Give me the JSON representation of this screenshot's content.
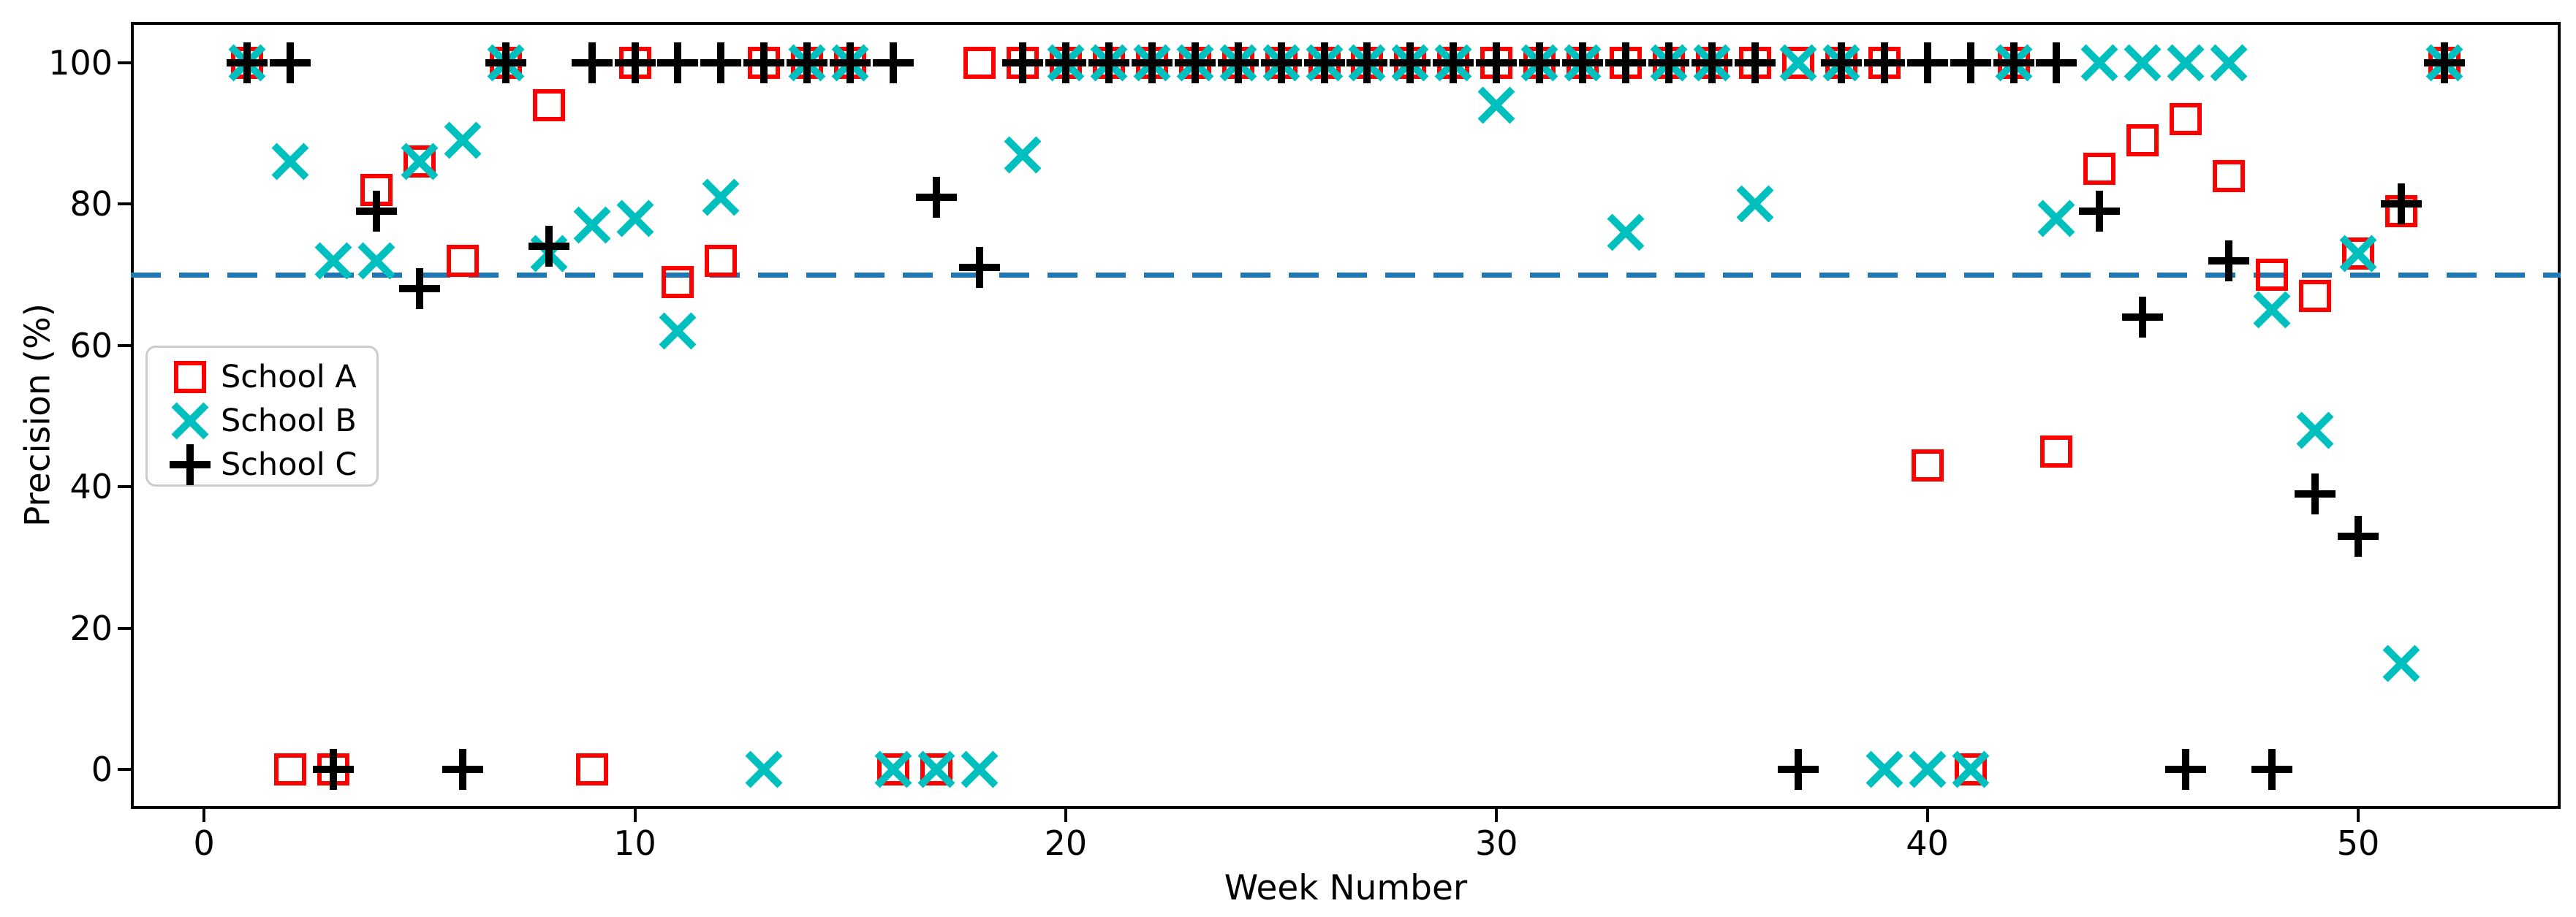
{
  "chart_data": {
    "type": "scatter",
    "title": "",
    "xlabel": "Week Number",
    "ylabel": "Precision (%)",
    "x_ticks": [
      0,
      10,
      20,
      30,
      40,
      50
    ],
    "y_ticks": [
      0,
      20,
      40,
      60,
      80,
      100
    ],
    "xlim": [
      -1.7,
      54.7
    ],
    "ylim": [
      -5.6,
      105.8
    ],
    "grid": false,
    "legend_position": "upper-left-inside",
    "x": [
      1,
      2,
      3,
      4,
      5,
      6,
      7,
      8,
      9,
      10,
      11,
      12,
      13,
      14,
      15,
      16,
      17,
      18,
      19,
      20,
      21,
      22,
      23,
      24,
      25,
      26,
      27,
      28,
      29,
      30,
      31,
      32,
      33,
      34,
      35,
      36,
      37,
      38,
      39,
      40,
      41,
      42,
      43,
      44,
      45,
      46,
      47,
      48,
      49,
      50,
      51,
      52
    ],
    "series": [
      {
        "name": "School A",
        "marker": "square",
        "color": "#ff0000",
        "values": [
          100,
          0,
          0,
          82,
          86,
          72,
          100,
          94,
          0,
          100,
          69,
          72,
          100,
          100,
          100,
          0,
          0,
          100,
          100,
          100,
          100,
          100,
          100,
          100,
          100,
          100,
          100,
          100,
          100,
          100,
          100,
          100,
          100,
          100,
          100,
          100,
          100,
          100,
          100,
          43,
          0,
          100,
          45,
          85,
          89,
          92,
          84,
          70,
          67,
          73,
          79,
          100
        ]
      },
      {
        "name": "School B",
        "marker": "x",
        "color": "#00bfbf",
        "values": [
          100,
          86,
          72,
          72,
          86,
          89,
          100,
          73,
          77,
          78,
          62,
          81,
          0,
          100,
          100,
          0,
          0,
          0,
          87,
          100,
          100,
          100,
          100,
          100,
          100,
          100,
          100,
          100,
          100,
          94,
          100,
          100,
          76,
          100,
          100,
          80,
          100,
          100,
          0,
          0,
          0,
          100,
          78,
          100,
          100,
          100,
          100,
          65,
          48,
          73,
          15,
          100
        ]
      },
      {
        "name": "School C",
        "marker": "plus",
        "color": "#000000",
        "values": [
          100,
          100,
          0,
          79,
          68,
          0,
          100,
          74,
          100,
          100,
          100,
          100,
          100,
          100,
          100,
          100,
          81,
          71,
          100,
          100,
          100,
          100,
          100,
          100,
          100,
          100,
          100,
          100,
          100,
          100,
          100,
          100,
          100,
          100,
          100,
          100,
          0,
          100,
          100,
          100,
          100,
          100,
          100,
          79,
          64,
          0,
          72,
          0,
          39,
          33,
          80,
          100
        ]
      }
    ],
    "threshold_line": {
      "y": 70,
      "style": "dashed",
      "color": "#1f77b4"
    }
  },
  "legend": {
    "items": [
      {
        "label": "School A"
      },
      {
        "label": "School B"
      },
      {
        "label": "School C"
      }
    ]
  },
  "colors": {
    "school_a": "#ff0000",
    "school_b": "#00bfbf",
    "school_c": "#000000",
    "threshold": "#1f77b4",
    "axis": "#000000",
    "background": "#ffffff"
  }
}
